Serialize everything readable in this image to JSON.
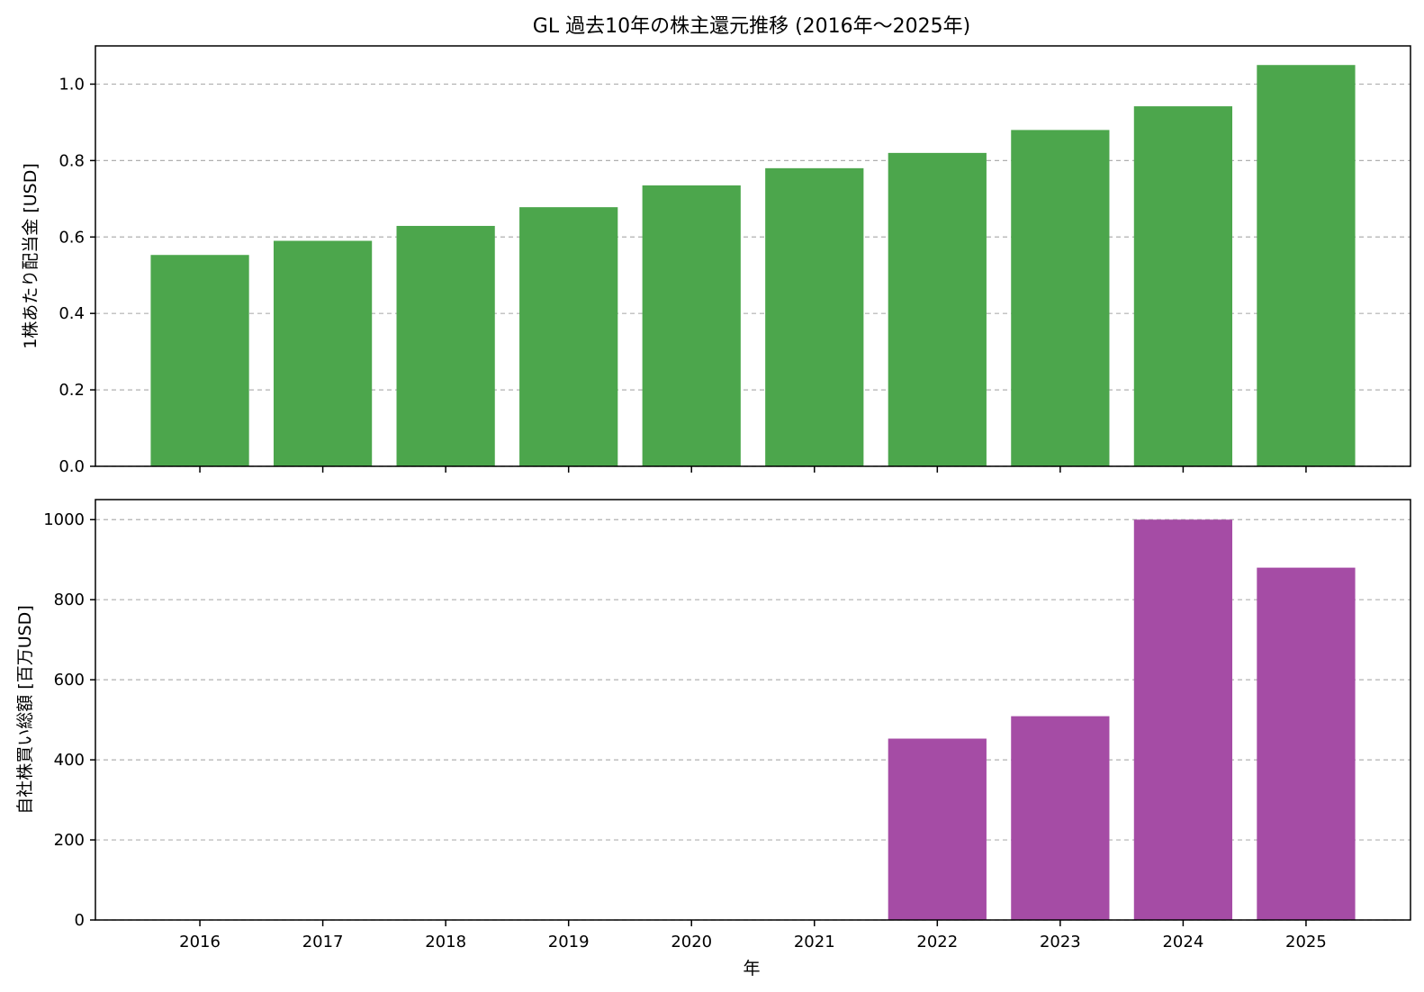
{
  "chart_data": {
    "title": "GL 過去10年の株主還元推移 (2016年～2025年)",
    "xlabel": "年",
    "categories": [
      "2016",
      "2017",
      "2018",
      "2019",
      "2020",
      "2021",
      "2022",
      "2023",
      "2024",
      "2025"
    ],
    "grid": "y-dashed",
    "charts": [
      {
        "type": "bar",
        "ylabel": "1株あたり配当金 [USD]",
        "ylim": [
          0,
          1.1
        ],
        "yticks": [
          "0.0",
          "0.2",
          "0.4",
          "0.6",
          "0.8",
          "1.0"
        ],
        "ytick_values": [
          0,
          0.2,
          0.4,
          0.6,
          0.8,
          1.0
        ],
        "color": "#4ca64c",
        "values": [
          0.553,
          0.59,
          0.629,
          0.678,
          0.735,
          0.78,
          0.82,
          0.88,
          0.942,
          1.05
        ]
      },
      {
        "type": "bar",
        "ylabel": "自社株買い総額 [百万USD]",
        "ylim": [
          0,
          1050
        ],
        "yticks": [
          "0",
          "200",
          "400",
          "600",
          "800",
          "1000"
        ],
        "ytick_values": [
          0,
          200,
          400,
          600,
          800,
          1000
        ],
        "color": "#a54ca5",
        "values": [
          0,
          0,
          0,
          0,
          0,
          0,
          453,
          509,
          1000,
          880
        ]
      }
    ]
  }
}
